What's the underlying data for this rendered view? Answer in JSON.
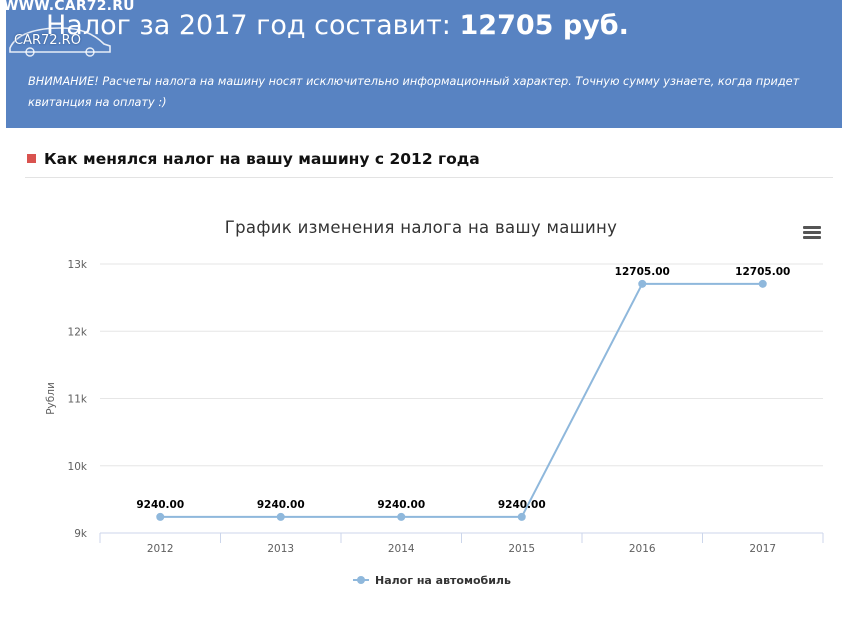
{
  "watermark": {
    "url": "WWW.CAR72.RU",
    "logo": "CAR72.RO"
  },
  "banner": {
    "title_prefix": "Налог за 2017 год составит:",
    "title_value": "12705 руб.",
    "warning": "ВНИМАНИЕ! Расчеты налога на машину носят исключительно информационный характер. Точную сумму узнаете, когда придет квитанция на оплату :)"
  },
  "section": {
    "title": "Как менялся налог на вашу машину с 2012 года"
  },
  "chart_menu": {
    "icon": "hamburger-menu-icon"
  },
  "colors": {
    "banner": "#5883c2",
    "series": "#8fb8dc",
    "marker": "#d9534f"
  },
  "chart_data": {
    "type": "line",
    "title": "График изменения налога на вашу машину",
    "ylabel": "Рубли",
    "xlabel": "",
    "categories": [
      "2012",
      "2013",
      "2014",
      "2015",
      "2016",
      "2017"
    ],
    "ylim": [
      9000,
      13000
    ],
    "yticks": [
      9000,
      10000,
      11000,
      12000,
      13000
    ],
    "ytick_labels": [
      "9k",
      "10k",
      "11k",
      "12k",
      "13k"
    ],
    "grid": true,
    "legend_position": "bottom-center",
    "series": [
      {
        "name": "Налог на автомобиль",
        "values": [
          9240,
          9240,
          9240,
          9240,
          12705,
          12705
        ],
        "data_labels": [
          "9240.00",
          "9240.00",
          "9240.00",
          "9240.00",
          "12705.00",
          "12705.00"
        ]
      }
    ]
  }
}
